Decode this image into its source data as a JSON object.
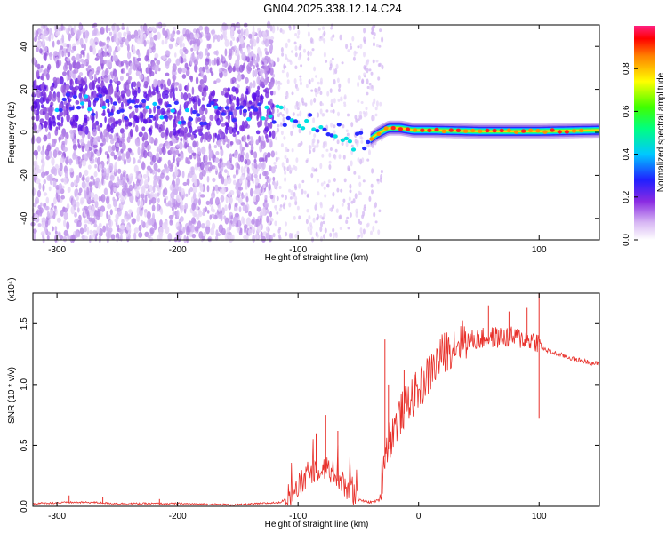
{
  "title": "GN04.2025.338.12.14.C24",
  "chart_data": [
    {
      "type": "heatmap",
      "name": "spectrogram",
      "xlabel": "Height of straight line (km)",
      "ylabel": "Frequency (Hz)",
      "xlim": [
        -320,
        150
      ],
      "ylim": [
        -50,
        50
      ],
      "xticks": [
        -300,
        -200,
        -100,
        0,
        100
      ],
      "yticks": [
        -40,
        -20,
        0,
        20,
        40
      ],
      "ridge": [
        {
          "x": -310,
          "y": 14
        },
        {
          "x": -280,
          "y": 13
        },
        {
          "x": -250,
          "y": 12
        },
        {
          "x": -220,
          "y": 10
        },
        {
          "x": -190,
          "y": 9
        },
        {
          "x": -160,
          "y": 9
        },
        {
          "x": -130,
          "y": 10
        },
        {
          "x": -115,
          "y": 9
        },
        {
          "x": -100,
          "y": 6
        },
        {
          "x": -85,
          "y": 4
        },
        {
          "x": -70,
          "y": 0
        },
        {
          "x": -60,
          "y": -3
        },
        {
          "x": -50,
          "y": -5
        },
        {
          "x": -42,
          "y": -4
        },
        {
          "x": -35,
          "y": -1
        },
        {
          "x": -25,
          "y": 2
        },
        {
          "x": -15,
          "y": 2
        },
        {
          "x": -5,
          "y": 1
        },
        {
          "x": 10,
          "y": 1
        },
        {
          "x": 50,
          "y": 0.5
        },
        {
          "x": 100,
          "y": 0.5
        },
        {
          "x": 150,
          "y": 1
        }
      ],
      "colorbar": {
        "label": "Normalized spectral amplitude",
        "range": [
          0,
          1
        ],
        "ticks": [
          "0.0",
          "0.2",
          "0.4",
          "0.6",
          "0.8"
        ]
      }
    },
    {
      "type": "line",
      "name": "snr",
      "xlabel": "Height of straight line (km)",
      "ylabel": "SNR (10 * v/v)",
      "multiplier": "(x10⁴)",
      "xlim": [
        -320,
        150
      ],
      "ylim": [
        0,
        1.75
      ],
      "xticks": [
        -300,
        -200,
        -100,
        0,
        100
      ],
      "yticks": [
        0.0,
        0.5,
        1.0,
        1.5
      ],
      "ytick_labels": [
        "0.0",
        "0.5",
        "1.0",
        "1.5"
      ],
      "color": "#e8302a",
      "envelope": [
        {
          "x": -320,
          "y": 0.02
        },
        {
          "x": -290,
          "y": 0.03
        },
        {
          "x": -270,
          "y": 0.03
        },
        {
          "x": -250,
          "y": 0.02
        },
        {
          "x": -200,
          "y": 0.02
        },
        {
          "x": -150,
          "y": 0.01
        },
        {
          "x": -115,
          "y": 0.03
        },
        {
          "x": -100,
          "y": 0.12
        },
        {
          "x": -90,
          "y": 0.25
        },
        {
          "x": -80,
          "y": 0.3
        },
        {
          "x": -70,
          "y": 0.25
        },
        {
          "x": -60,
          "y": 0.12
        },
        {
          "x": -50,
          "y": 0.05
        },
        {
          "x": -40,
          "y": 0.03
        },
        {
          "x": -32,
          "y": 0.05
        },
        {
          "x": -28,
          "y": 0.4
        },
        {
          "x": -20,
          "y": 0.6
        },
        {
          "x": -10,
          "y": 0.8
        },
        {
          "x": 0,
          "y": 0.9
        },
        {
          "x": 10,
          "y": 1.05
        },
        {
          "x": 20,
          "y": 1.2
        },
        {
          "x": 30,
          "y": 1.28
        },
        {
          "x": 40,
          "y": 1.33
        },
        {
          "x": 60,
          "y": 1.36
        },
        {
          "x": 80,
          "y": 1.36
        },
        {
          "x": 98,
          "y": 1.33
        },
        {
          "x": 100,
          "y": 1.3
        },
        {
          "x": 110,
          "y": 1.26
        },
        {
          "x": 130,
          "y": 1.2
        },
        {
          "x": 150,
          "y": 1.16
        }
      ],
      "peaks": [
        {
          "x": -290,
          "y": 0.09
        },
        {
          "x": -262,
          "y": 0.08
        },
        {
          "x": -215,
          "y": 0.06
        },
        {
          "x": -85,
          "y": 0.6
        },
        {
          "x": -77,
          "y": 0.75
        },
        {
          "x": -67,
          "y": 0.62
        },
        {
          "x": -28,
          "y": 1.37
        },
        {
          "x": -25,
          "y": 1.0
        },
        {
          "x": -12,
          "y": 1.12
        },
        {
          "x": 58,
          "y": 1.65
        },
        {
          "x": 75,
          "y": 1.6
        },
        {
          "x": 90,
          "y": 1.63
        },
        {
          "x": 100,
          "y": 1.75
        },
        {
          "x": 100,
          "y": 0.72
        }
      ]
    }
  ]
}
